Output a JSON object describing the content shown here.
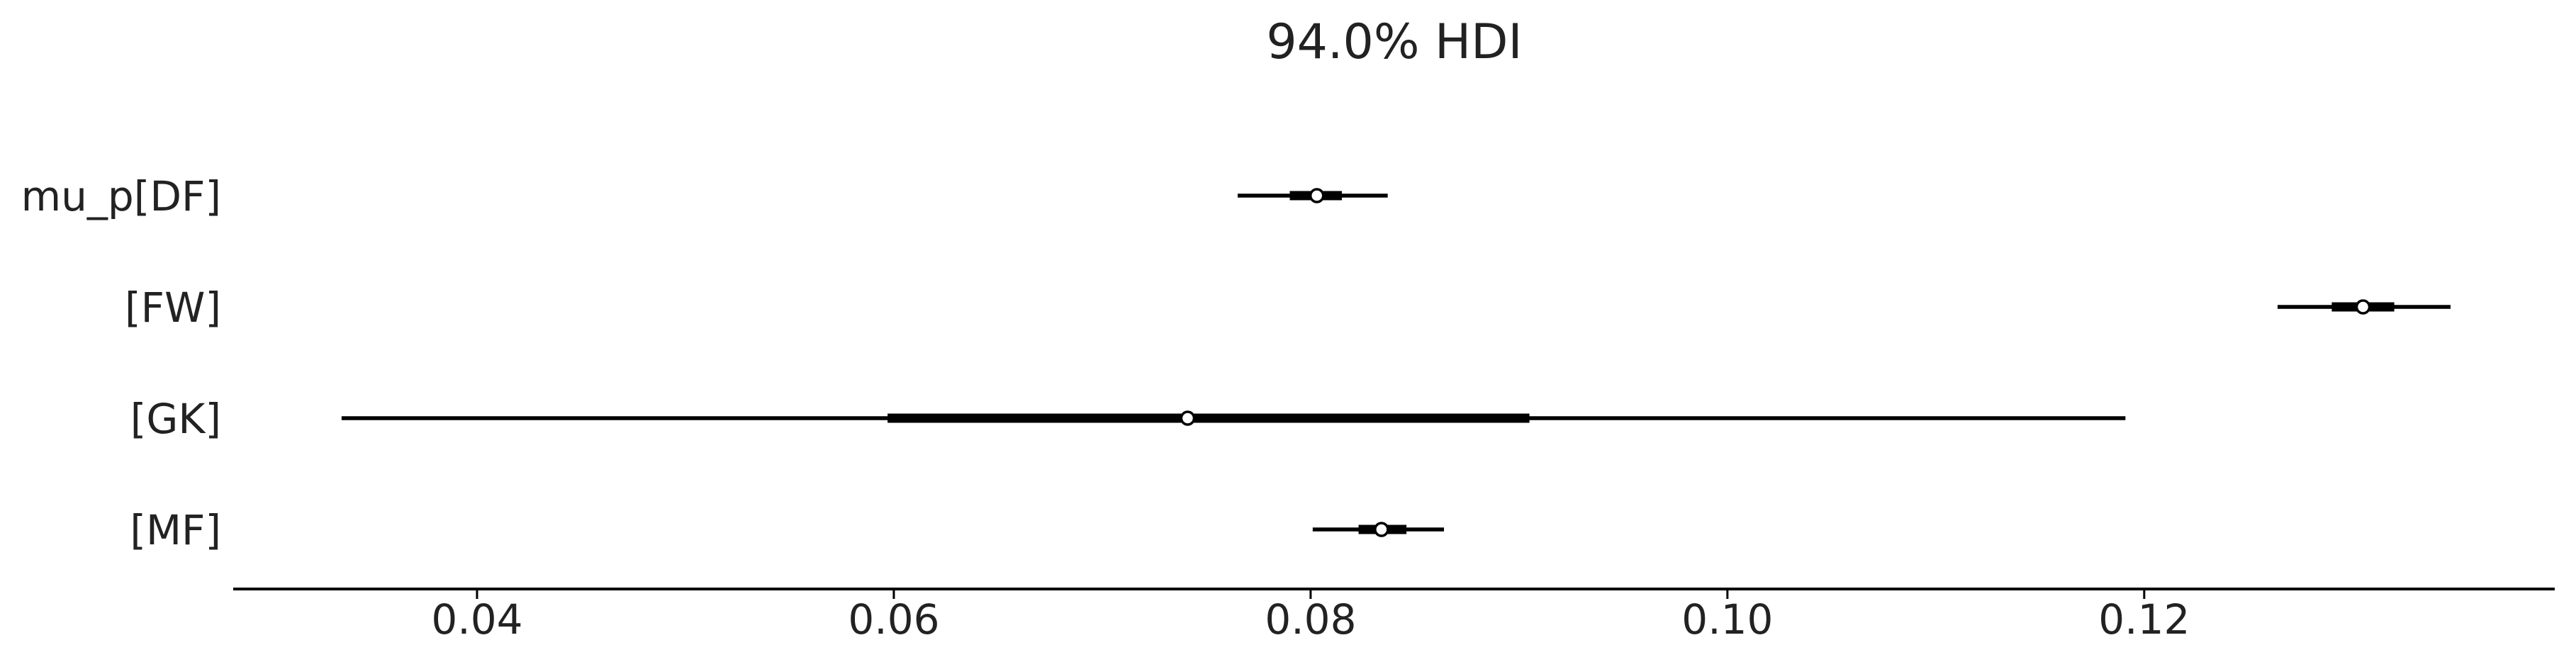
{
  "chart_data": {
    "type": "forest",
    "title": "94.0% HDI",
    "xlabel": "",
    "ylabel": "",
    "xlim": [
      0.0283,
      0.1397
    ],
    "xticks": [
      0.04,
      0.06,
      0.08,
      0.1,
      0.12
    ],
    "xtick_labels": [
      "0.04",
      "0.06",
      "0.08",
      "0.10",
      "0.12"
    ],
    "grid": false,
    "categories": [
      "mu_p[DF]",
      "[FW]",
      "[GK]",
      "[MF]"
    ],
    "series": [
      {
        "label": "mu_p[DF]",
        "hdi_low": 0.0765,
        "hdi_high": 0.0837,
        "iqr_low": 0.079,
        "iqr_high": 0.0815,
        "point": 0.0803
      },
      {
        "label": "[FW]",
        "hdi_low": 0.1264,
        "hdi_high": 0.1347,
        "iqr_low": 0.129,
        "iqr_high": 0.132,
        "point": 0.1305
      },
      {
        "label": "[GK]",
        "hdi_low": 0.0335,
        "hdi_high": 0.1191,
        "iqr_low": 0.0597,
        "iqr_high": 0.0905,
        "point": 0.0741
      },
      {
        "label": "[MF]",
        "hdi_low": 0.0801,
        "hdi_high": 0.0864,
        "iqr_low": 0.0823,
        "iqr_high": 0.0846,
        "point": 0.0834
      }
    ],
    "colors": {
      "line": "#000000",
      "marker_fill": "#ffffff",
      "axis": "#000000",
      "text": "#222222"
    }
  }
}
